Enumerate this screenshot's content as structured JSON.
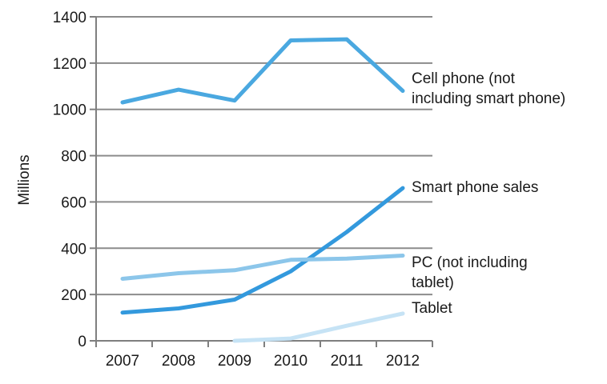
{
  "chart_data": {
    "type": "line",
    "ylabel": "Millions",
    "ylim": [
      0,
      1400
    ],
    "yticks": [
      0,
      200,
      400,
      600,
      800,
      1000,
      1200,
      1400
    ],
    "categories": [
      "2007",
      "2008",
      "2009",
      "2010",
      "2011",
      "2012"
    ],
    "grid": "horizontal",
    "series": [
      {
        "name": "Cell phone (not including smart phone)",
        "label_lines": [
          "Cell phone (not",
          "including smart phone)"
        ],
        "color": "#4aa8e0",
        "values": [
          1030,
          1085,
          1038,
          1298,
          1303,
          1080
        ]
      },
      {
        "name": "Smart phone sales",
        "label_lines": [
          "Smart phone sales"
        ],
        "color": "#3399dd",
        "values": [
          122,
          140,
          178,
          300,
          470,
          660
        ]
      },
      {
        "name": "PC (not including tablet)",
        "label_lines": [
          "PC (not including",
          "tablet)"
        ],
        "color": "#8cc6ea",
        "values": [
          268,
          292,
          305,
          350,
          355,
          368
        ]
      },
      {
        "name": "Tablet",
        "label_lines": [
          "Tablet"
        ],
        "color": "#c6e3f5",
        "x_start_index": 2,
        "values": [
          null,
          null,
          0,
          10,
          65,
          118
        ]
      }
    ]
  }
}
